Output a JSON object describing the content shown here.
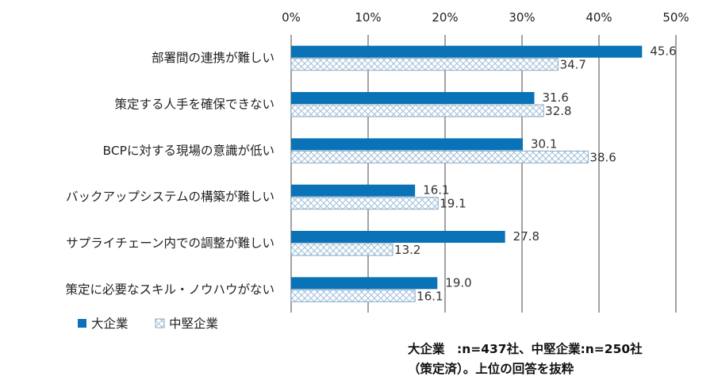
{
  "chart_data": {
    "type": "bar",
    "orientation": "horizontal",
    "categories": [
      "部署間の連携が難しい",
      "策定する人手を確保できない",
      "BCPに対する現場の意識が低い",
      "バックアップシステムの構築が難しい",
      "サプライチェーン内での調整が難しい",
      "策定に必要なスキル・ノウハウがない"
    ],
    "series": [
      {
        "name": "大企業",
        "values": [
          45.6,
          31.6,
          30.1,
          16.1,
          27.8,
          19.0
        ],
        "labels": [
          "45.6",
          "31.6",
          "30.1",
          "16.1",
          "27.8",
          "19.0"
        ],
        "color": "#0a73b8",
        "pattern": "solid"
      },
      {
        "name": "中堅企業",
        "values": [
          34.7,
          32.8,
          38.6,
          19.1,
          13.2,
          16.1
        ],
        "labels": [
          "34.7",
          "32.8",
          "38.6",
          "19.1",
          "13.2",
          "16.1"
        ],
        "color": "#a9c6de",
        "pattern": "crosshatch"
      }
    ],
    "xlim": [
      0,
      50
    ],
    "x_ticks": [
      "0%",
      "10%",
      "20%",
      "30%",
      "40%",
      "50%"
    ],
    "x_axis_position": "top",
    "grid": true,
    "legend_position": "bottom-left"
  },
  "note": {
    "line1": "大企業　:n=437社、中堅企業:n=250社",
    "line2": "（策定済）。上位の回答を抜粋"
  }
}
